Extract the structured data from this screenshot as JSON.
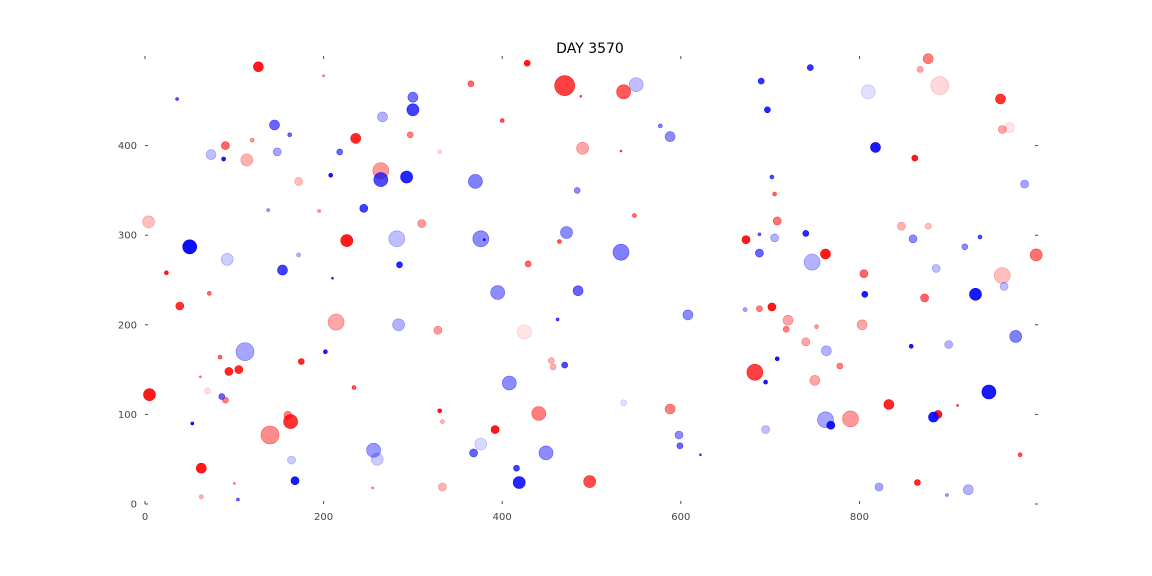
{
  "chart_data": {
    "type": "scatter",
    "title": "DAY 3570",
    "xlabel": "",
    "ylabel": "",
    "xlim": [
      0,
      1000
    ],
    "ylim": [
      0,
      500
    ],
    "xticks": [
      0,
      200,
      400,
      600,
      800
    ],
    "yticks": [
      0,
      100,
      200,
      300,
      400
    ],
    "grid": false,
    "frame": false,
    "colors": {
      "red": "#ff0000",
      "blue": "#0000ff",
      "axis": "#444444"
    },
    "points": [
      {
        "x": 127,
        "y": 488,
        "r": 5,
        "c": "red",
        "a": 0.9
      },
      {
        "x": 428,
        "y": 492,
        "r": 3,
        "c": "red",
        "a": 0.9
      },
      {
        "x": 470,
        "y": 467,
        "r": 10,
        "c": "red",
        "a": 0.75
      },
      {
        "x": 536,
        "y": 460,
        "r": 7,
        "c": "red",
        "a": 0.65
      },
      {
        "x": 550,
        "y": 468,
        "r": 7,
        "c": "blue",
        "a": 0.25
      },
      {
        "x": 365,
        "y": 469,
        "r": 3,
        "c": "red",
        "a": 0.6
      },
      {
        "x": 300,
        "y": 454,
        "r": 5,
        "c": "blue",
        "a": 0.55
      },
      {
        "x": 300,
        "y": 440,
        "r": 6,
        "c": "blue",
        "a": 0.75
      },
      {
        "x": 36,
        "y": 452,
        "r": 1.5,
        "c": "blue",
        "a": 0.7
      },
      {
        "x": 145,
        "y": 423,
        "r": 5,
        "c": "blue",
        "a": 0.6
      },
      {
        "x": 162,
        "y": 412,
        "r": 2,
        "c": "blue",
        "a": 0.6
      },
      {
        "x": 90,
        "y": 400,
        "r": 4,
        "c": "red",
        "a": 0.6
      },
      {
        "x": 74,
        "y": 390,
        "r": 5,
        "c": "blue",
        "a": 0.25
      },
      {
        "x": 88,
        "y": 385,
        "r": 2,
        "c": "blue",
        "a": 0.9
      },
      {
        "x": 114,
        "y": 384,
        "r": 6,
        "c": "red",
        "a": 0.3
      },
      {
        "x": 148,
        "y": 393,
        "r": 4,
        "c": "blue",
        "a": 0.35
      },
      {
        "x": 236,
        "y": 408,
        "r": 5,
        "c": "red",
        "a": 0.85
      },
      {
        "x": 266,
        "y": 432,
        "r": 5,
        "c": "blue",
        "a": 0.3
      },
      {
        "x": 264,
        "y": 372,
        "r": 8,
        "c": "red",
        "a": 0.4
      },
      {
        "x": 264,
        "y": 362,
        "r": 7,
        "c": "blue",
        "a": 0.7
      },
      {
        "x": 293,
        "y": 365,
        "r": 6,
        "c": "blue",
        "a": 0.85
      },
      {
        "x": 208,
        "y": 367,
        "r": 2,
        "c": "blue",
        "a": 0.9
      },
      {
        "x": 218,
        "y": 393,
        "r": 3,
        "c": "blue",
        "a": 0.6
      },
      {
        "x": 297,
        "y": 412,
        "r": 3,
        "c": "red",
        "a": 0.5
      },
      {
        "x": 172,
        "y": 360,
        "r": 4,
        "c": "red",
        "a": 0.25
      },
      {
        "x": 245,
        "y": 330,
        "r": 4,
        "c": "blue",
        "a": 0.75
      },
      {
        "x": 370,
        "y": 360,
        "r": 7,
        "c": "blue",
        "a": 0.5
      },
      {
        "x": 490,
        "y": 397,
        "r": 6,
        "c": "red",
        "a": 0.35
      },
      {
        "x": 484,
        "y": 350,
        "r": 3,
        "c": "blue",
        "a": 0.45
      },
      {
        "x": 588,
        "y": 410,
        "r": 5,
        "c": "blue",
        "a": 0.45
      },
      {
        "x": 4,
        "y": 315,
        "r": 6,
        "c": "red",
        "a": 0.25
      },
      {
        "x": 310,
        "y": 313,
        "r": 4,
        "c": "red",
        "a": 0.4
      },
      {
        "x": 282,
        "y": 296,
        "r": 8,
        "c": "blue",
        "a": 0.25
      },
      {
        "x": 226,
        "y": 294,
        "r": 6,
        "c": "red",
        "a": 0.9
      },
      {
        "x": 376,
        "y": 296,
        "r": 8,
        "c": "blue",
        "a": 0.45
      },
      {
        "x": 472,
        "y": 303,
        "r": 6,
        "c": "blue",
        "a": 0.45
      },
      {
        "x": 548,
        "y": 322,
        "r": 2,
        "c": "red",
        "a": 0.6
      },
      {
        "x": 50,
        "y": 287,
        "r": 7,
        "c": "blue",
        "a": 0.95
      },
      {
        "x": 24,
        "y": 258,
        "r": 2,
        "c": "red",
        "a": 0.9
      },
      {
        "x": 92,
        "y": 273,
        "r": 6,
        "c": "blue",
        "a": 0.2
      },
      {
        "x": 154,
        "y": 261,
        "r": 5,
        "c": "blue",
        "a": 0.75
      },
      {
        "x": 285,
        "y": 267,
        "r": 3,
        "c": "blue",
        "a": 0.85
      },
      {
        "x": 429,
        "y": 268,
        "r": 3,
        "c": "red",
        "a": 0.6
      },
      {
        "x": 533,
        "y": 281,
        "r": 8,
        "c": "blue",
        "a": 0.5
      },
      {
        "x": 39,
        "y": 221,
        "r": 4,
        "c": "red",
        "a": 0.8
      },
      {
        "x": 72,
        "y": 235,
        "r": 2,
        "c": "red",
        "a": 0.6
      },
      {
        "x": 395,
        "y": 236,
        "r": 7,
        "c": "blue",
        "a": 0.45
      },
      {
        "x": 485,
        "y": 238,
        "r": 5,
        "c": "blue",
        "a": 0.6
      },
      {
        "x": 214,
        "y": 203,
        "r": 8,
        "c": "red",
        "a": 0.35
      },
      {
        "x": 284,
        "y": 200,
        "r": 6,
        "c": "blue",
        "a": 0.3
      },
      {
        "x": 328,
        "y": 194,
        "r": 4,
        "c": "red",
        "a": 0.4
      },
      {
        "x": 425,
        "y": 192,
        "r": 7,
        "c": "red",
        "a": 0.1
      },
      {
        "x": 608,
        "y": 211,
        "r": 5,
        "c": "blue",
        "a": 0.45
      },
      {
        "x": 112,
        "y": 170,
        "r": 9,
        "c": "blue",
        "a": 0.35
      },
      {
        "x": 84,
        "y": 164,
        "r": 2,
        "c": "red",
        "a": 0.6
      },
      {
        "x": 175,
        "y": 159,
        "r": 3,
        "c": "red",
        "a": 0.85
      },
      {
        "x": 94,
        "y": 148,
        "r": 4,
        "c": "red",
        "a": 0.85
      },
      {
        "x": 105,
        "y": 150,
        "r": 4,
        "c": "red",
        "a": 0.85
      },
      {
        "x": 202,
        "y": 170,
        "r": 2,
        "c": "blue",
        "a": 0.9
      },
      {
        "x": 455,
        "y": 160,
        "r": 3,
        "c": "red",
        "a": 0.3
      },
      {
        "x": 457,
        "y": 153,
        "r": 3,
        "c": "red",
        "a": 0.3
      },
      {
        "x": 470,
        "y": 155,
        "r": 3,
        "c": "blue",
        "a": 0.7
      },
      {
        "x": 408,
        "y": 135,
        "r": 7,
        "c": "blue",
        "a": 0.45
      },
      {
        "x": 5,
        "y": 122,
        "r": 6,
        "c": "red",
        "a": 0.9
      },
      {
        "x": 86,
        "y": 120,
        "r": 3,
        "c": "blue",
        "a": 0.6
      },
      {
        "x": 90,
        "y": 116,
        "r": 3,
        "c": "red",
        "a": 0.5
      },
      {
        "x": 234,
        "y": 130,
        "r": 2,
        "c": "red",
        "a": 0.7
      },
      {
        "x": 140,
        "y": 77,
        "r": 9,
        "c": "red",
        "a": 0.45
      },
      {
        "x": 160,
        "y": 99,
        "r": 4,
        "c": "red",
        "a": 0.5
      },
      {
        "x": 163,
        "y": 92,
        "r": 7,
        "c": "red",
        "a": 0.8
      },
      {
        "x": 330,
        "y": 104,
        "r": 2,
        "c": "red",
        "a": 0.9
      },
      {
        "x": 333,
        "y": 92,
        "r": 2,
        "c": "red",
        "a": 0.3
      },
      {
        "x": 441,
        "y": 101,
        "r": 7,
        "c": "red",
        "a": 0.5
      },
      {
        "x": 392,
        "y": 83,
        "r": 4,
        "c": "red",
        "a": 0.9
      },
      {
        "x": 376,
        "y": 67,
        "r": 6,
        "c": "blue",
        "a": 0.15
      },
      {
        "x": 256,
        "y": 60,
        "r": 7,
        "c": "blue",
        "a": 0.4
      },
      {
        "x": 260,
        "y": 50,
        "r": 6,
        "c": "blue",
        "a": 0.2
      },
      {
        "x": 164,
        "y": 49,
        "r": 4,
        "c": "blue",
        "a": 0.2
      },
      {
        "x": 368,
        "y": 57,
        "r": 4,
        "c": "blue",
        "a": 0.6
      },
      {
        "x": 449,
        "y": 57,
        "r": 7,
        "c": "blue",
        "a": 0.45
      },
      {
        "x": 53,
        "y": 90,
        "r": 1.5,
        "c": "blue",
        "a": 0.9
      },
      {
        "x": 63,
        "y": 40,
        "r": 5,
        "c": "red",
        "a": 0.9
      },
      {
        "x": 168,
        "y": 26,
        "r": 4,
        "c": "blue",
        "a": 0.9
      },
      {
        "x": 416,
        "y": 40,
        "r": 3,
        "c": "blue",
        "a": 0.75
      },
      {
        "x": 419,
        "y": 24,
        "r": 6,
        "c": "blue",
        "a": 0.85
      },
      {
        "x": 333,
        "y": 19,
        "r": 4,
        "c": "red",
        "a": 0.3
      },
      {
        "x": 498,
        "y": 25,
        "r": 6,
        "c": "red",
        "a": 0.7
      },
      {
        "x": 588,
        "y": 106,
        "r": 5,
        "c": "red",
        "a": 0.5
      },
      {
        "x": 598,
        "y": 77,
        "r": 4,
        "c": "blue",
        "a": 0.45
      },
      {
        "x": 599,
        "y": 65,
        "r": 3,
        "c": "blue",
        "a": 0.6
      },
      {
        "x": 104,
        "y": 5,
        "r": 1.5,
        "c": "blue",
        "a": 0.6
      },
      {
        "x": 690,
        "y": 472,
        "r": 3,
        "c": "blue",
        "a": 0.8
      },
      {
        "x": 745,
        "y": 487,
        "r": 3,
        "c": "blue",
        "a": 0.8
      },
      {
        "x": 868,
        "y": 485,
        "r": 3,
        "c": "red",
        "a": 0.35
      },
      {
        "x": 877,
        "y": 497,
        "r": 5,
        "c": "red",
        "a": 0.5
      },
      {
        "x": 890,
        "y": 467,
        "r": 9,
        "c": "red",
        "a": 0.15
      },
      {
        "x": 810,
        "y": 460,
        "r": 7,
        "c": "blue",
        "a": 0.12
      },
      {
        "x": 697,
        "y": 440,
        "r": 3,
        "c": "blue",
        "a": 0.85
      },
      {
        "x": 818,
        "y": 398,
        "r": 5,
        "c": "blue",
        "a": 0.9
      },
      {
        "x": 862,
        "y": 386,
        "r": 3,
        "c": "red",
        "a": 0.9
      },
      {
        "x": 958,
        "y": 452,
        "r": 5,
        "c": "red",
        "a": 0.8
      },
      {
        "x": 960,
        "y": 418,
        "r": 4,
        "c": "red",
        "a": 0.35
      },
      {
        "x": 968,
        "y": 420,
        "r": 5,
        "c": "red",
        "a": 0.1
      },
      {
        "x": 985,
        "y": 357,
        "r": 4,
        "c": "blue",
        "a": 0.35
      },
      {
        "x": 705,
        "y": 346,
        "r": 2,
        "c": "red",
        "a": 0.6
      },
      {
        "x": 708,
        "y": 316,
        "r": 4,
        "c": "red",
        "a": 0.55
      },
      {
        "x": 740,
        "y": 302,
        "r": 3,
        "c": "blue",
        "a": 0.85
      },
      {
        "x": 673,
        "y": 295,
        "r": 4,
        "c": "red",
        "a": 0.9
      },
      {
        "x": 688,
        "y": 280,
        "r": 4,
        "c": "blue",
        "a": 0.6
      },
      {
        "x": 747,
        "y": 270,
        "r": 8,
        "c": "blue",
        "a": 0.3
      },
      {
        "x": 762,
        "y": 279,
        "r": 5,
        "c": "red",
        "a": 0.9
      },
      {
        "x": 805,
        "y": 257,
        "r": 4,
        "c": "red",
        "a": 0.6
      },
      {
        "x": 806,
        "y": 234,
        "r": 3,
        "c": "blue",
        "a": 0.9
      },
      {
        "x": 847,
        "y": 310,
        "r": 4,
        "c": "red",
        "a": 0.3
      },
      {
        "x": 860,
        "y": 296,
        "r": 4,
        "c": "blue",
        "a": 0.45
      },
      {
        "x": 873,
        "y": 230,
        "r": 4,
        "c": "red",
        "a": 0.6
      },
      {
        "x": 886,
        "y": 263,
        "r": 4,
        "c": "blue",
        "a": 0.25
      },
      {
        "x": 918,
        "y": 287,
        "r": 3,
        "c": "blue",
        "a": 0.45
      },
      {
        "x": 930,
        "y": 234,
        "r": 6,
        "c": "blue",
        "a": 0.9
      },
      {
        "x": 960,
        "y": 255,
        "r": 8,
        "c": "red",
        "a": 0.25
      },
      {
        "x": 962,
        "y": 243,
        "r": 4,
        "c": "blue",
        "a": 0.25
      },
      {
        "x": 998,
        "y": 278,
        "r": 6,
        "c": "red",
        "a": 0.55
      },
      {
        "x": 705,
        "y": 297,
        "r": 4,
        "c": "blue",
        "a": 0.3
      },
      {
        "x": 688,
        "y": 218,
        "r": 3,
        "c": "red",
        "a": 0.5
      },
      {
        "x": 702,
        "y": 220,
        "r": 4,
        "c": "red",
        "a": 0.9
      },
      {
        "x": 720,
        "y": 205,
        "r": 5,
        "c": "red",
        "a": 0.35
      },
      {
        "x": 718,
        "y": 195,
        "r": 3,
        "c": "red",
        "a": 0.5
      },
      {
        "x": 740,
        "y": 181,
        "r": 4,
        "c": "red",
        "a": 0.35
      },
      {
        "x": 763,
        "y": 171,
        "r": 5,
        "c": "blue",
        "a": 0.3
      },
      {
        "x": 803,
        "y": 200,
        "r": 5,
        "c": "red",
        "a": 0.35
      },
      {
        "x": 858,
        "y": 176,
        "r": 2,
        "c": "blue",
        "a": 0.9
      },
      {
        "x": 900,
        "y": 178,
        "r": 4,
        "c": "blue",
        "a": 0.3
      },
      {
        "x": 975,
        "y": 187,
        "r": 6,
        "c": "blue",
        "a": 0.5
      },
      {
        "x": 683,
        "y": 147,
        "r": 8,
        "c": "red",
        "a": 0.75
      },
      {
        "x": 708,
        "y": 162,
        "r": 2,
        "c": "blue",
        "a": 0.9
      },
      {
        "x": 695,
        "y": 136,
        "r": 2,
        "c": "blue",
        "a": 0.9
      },
      {
        "x": 750,
        "y": 138,
        "r": 5,
        "c": "red",
        "a": 0.35
      },
      {
        "x": 778,
        "y": 154,
        "r": 3,
        "c": "red",
        "a": 0.5
      },
      {
        "x": 762,
        "y": 94,
        "r": 8,
        "c": "blue",
        "a": 0.35
      },
      {
        "x": 768,
        "y": 88,
        "r": 4,
        "c": "blue",
        "a": 0.9
      },
      {
        "x": 790,
        "y": 95,
        "r": 8,
        "c": "red",
        "a": 0.4
      },
      {
        "x": 833,
        "y": 111,
        "r": 5,
        "c": "red",
        "a": 0.85
      },
      {
        "x": 888,
        "y": 100,
        "r": 4,
        "c": "red",
        "a": 0.9
      },
      {
        "x": 883,
        "y": 97,
        "r": 5,
        "c": "blue",
        "a": 0.9
      },
      {
        "x": 945,
        "y": 125,
        "r": 7,
        "c": "blue",
        "a": 0.9
      },
      {
        "x": 695,
        "y": 83,
        "r": 4,
        "c": "blue",
        "a": 0.25
      },
      {
        "x": 822,
        "y": 19,
        "r": 4,
        "c": "blue",
        "a": 0.35
      },
      {
        "x": 865,
        "y": 24,
        "r": 3,
        "c": "red",
        "a": 0.85
      },
      {
        "x": 922,
        "y": 16,
        "r": 5,
        "c": "blue",
        "a": 0.3
      },
      {
        "x": 980,
        "y": 55,
        "r": 2,
        "c": "red",
        "a": 0.7
      },
      {
        "x": 622,
        "y": 55,
        "r": 1,
        "c": "blue",
        "a": 0.7
      },
      {
        "x": 536,
        "y": 113,
        "r": 3,
        "c": "blue",
        "a": 0.12
      },
      {
        "x": 488,
        "y": 455,
        "r": 1,
        "c": "red",
        "a": 0.7
      },
      {
        "x": 533,
        "y": 394,
        "r": 1,
        "c": "red",
        "a": 0.7
      },
      {
        "x": 400,
        "y": 428,
        "r": 2,
        "c": "red",
        "a": 0.7
      },
      {
        "x": 577,
        "y": 422,
        "r": 2,
        "c": "blue",
        "a": 0.5
      },
      {
        "x": 200,
        "y": 478,
        "r": 1,
        "c": "red",
        "a": 0.5
      },
      {
        "x": 210,
        "y": 252,
        "r": 1,
        "c": "blue",
        "a": 0.8
      },
      {
        "x": 464,
        "y": 293,
        "r": 2,
        "c": "red",
        "a": 0.7
      },
      {
        "x": 462,
        "y": 206,
        "r": 1.5,
        "c": "blue",
        "a": 0.7
      },
      {
        "x": 380,
        "y": 295,
        "r": 1,
        "c": "blue",
        "a": 0.9
      },
      {
        "x": 688,
        "y": 301,
        "r": 1.5,
        "c": "blue",
        "a": 0.6
      },
      {
        "x": 702,
        "y": 365,
        "r": 2,
        "c": "blue",
        "a": 0.7
      },
      {
        "x": 672,
        "y": 217,
        "r": 2,
        "c": "blue",
        "a": 0.35
      },
      {
        "x": 877,
        "y": 310,
        "r": 3,
        "c": "red",
        "a": 0.25
      },
      {
        "x": 935,
        "y": 298,
        "r": 2,
        "c": "blue",
        "a": 0.7
      },
      {
        "x": 752,
        "y": 198,
        "r": 2,
        "c": "red",
        "a": 0.4
      },
      {
        "x": 910,
        "y": 110,
        "r": 1,
        "c": "red",
        "a": 0.8
      },
      {
        "x": 138,
        "y": 328,
        "r": 1.5,
        "c": "blue",
        "a": 0.4
      },
      {
        "x": 195,
        "y": 327,
        "r": 1.5,
        "c": "red",
        "a": 0.4
      },
      {
        "x": 172,
        "y": 278,
        "r": 2,
        "c": "blue",
        "a": 0.3
      },
      {
        "x": 330,
        "y": 393,
        "r": 2,
        "c": "red",
        "a": 0.15
      },
      {
        "x": 120,
        "y": 406,
        "r": 2,
        "c": "red",
        "a": 0.4
      },
      {
        "x": 70,
        "y": 126,
        "r": 3,
        "c": "red",
        "a": 0.12
      },
      {
        "x": 62,
        "y": 142,
        "r": 1,
        "c": "red",
        "a": 0.5
      },
      {
        "x": 63,
        "y": 8,
        "r": 2,
        "c": "red",
        "a": 0.3
      },
      {
        "x": 255,
        "y": 18,
        "r": 1,
        "c": "red",
        "a": 0.5
      },
      {
        "x": 100,
        "y": 23,
        "r": 1,
        "c": "red",
        "a": 0.5
      },
      {
        "x": 898,
        "y": 10,
        "r": 1.5,
        "c": "blue",
        "a": 0.4
      }
    ]
  }
}
